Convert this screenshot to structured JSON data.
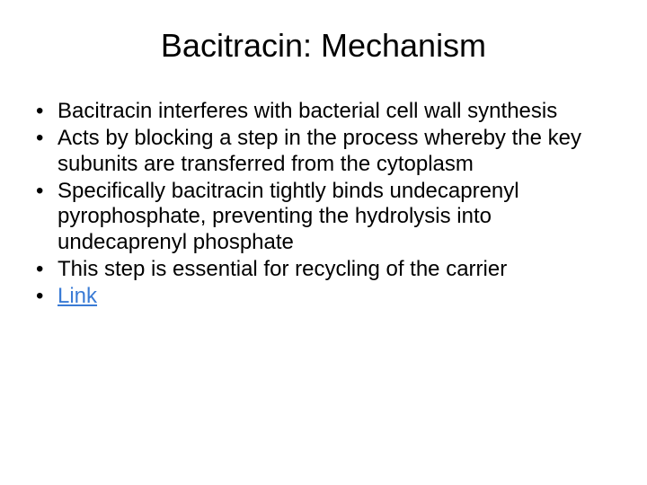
{
  "slide": {
    "title": "Bacitracin: Mechanism",
    "bullets": [
      "Bacitracin interferes with bacterial cell wall synthesis",
      "Acts by blocking a step in the process whereby the key subunits are transferred from the cytoplasm",
      "Specifically bacitracin tightly binds undecaprenyl pyrophosphate, preventing the hydrolysis into undecaprenyl phosphate",
      "This step is essential for recycling of the carrier"
    ],
    "link_text": "Link",
    "colors": {
      "background": "#ffffff",
      "text": "#000000",
      "link": "#3a7bd5"
    },
    "typography": {
      "title_fontsize": 36,
      "body_fontsize": 24,
      "font_family": "Arial"
    }
  }
}
